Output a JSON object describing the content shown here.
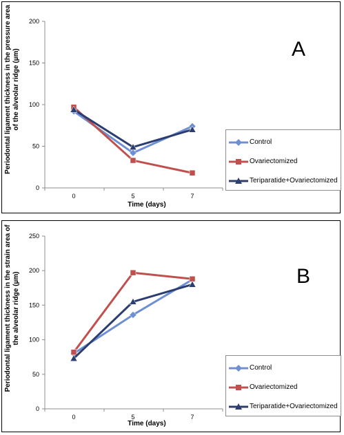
{
  "chart_data": [
    {
      "type": "line",
      "panel_label": "A",
      "ylabel": "Periodontal ligament thickness in the pressure area of the alveolar ridge (µm)",
      "xlabel": "Time (days)",
      "categories": [
        "0",
        "5",
        "7"
      ],
      "ylim": [
        0,
        200
      ],
      "yticks": [
        "0",
        "50",
        "100",
        "150",
        "200"
      ],
      "grid": false,
      "legend_position": "right",
      "series": [
        {
          "name": "Control",
          "values": [
            92,
            42,
            74
          ],
          "color": "#6e8fd4",
          "marker": "diamond"
        },
        {
          "name": "Ovariectomized",
          "values": [
            97,
            33,
            18
          ],
          "color": "#c0504d",
          "marker": "square"
        },
        {
          "name": "Teriparatide+Ovariectomized",
          "values": [
            94,
            49,
            70
          ],
          "color": "#2c3e70",
          "marker": "triangle"
        }
      ]
    },
    {
      "type": "line",
      "panel_label": "B",
      "ylabel": "Periodontal ligament thickness in the strain area of the alveolar ridge (µm)",
      "xlabel": "Time (days)",
      "categories": [
        "0",
        "5",
        "7"
      ],
      "ylim": [
        0,
        250
      ],
      "yticks": [
        "0",
        "50",
        "100",
        "150",
        "200",
        "250"
      ],
      "grid": false,
      "legend_position": "right",
      "series": [
        {
          "name": "Control",
          "values": [
            80,
            136,
            187
          ],
          "color": "#6e8fd4",
          "marker": "diamond"
        },
        {
          "name": "Ovariectomized",
          "values": [
            82,
            197,
            188
          ],
          "color": "#c0504d",
          "marker": "square"
        },
        {
          "name": "Teriparatide+Ovariectomized",
          "values": [
            73,
            155,
            180
          ],
          "color": "#2c3e70",
          "marker": "triangle"
        }
      ]
    }
  ]
}
